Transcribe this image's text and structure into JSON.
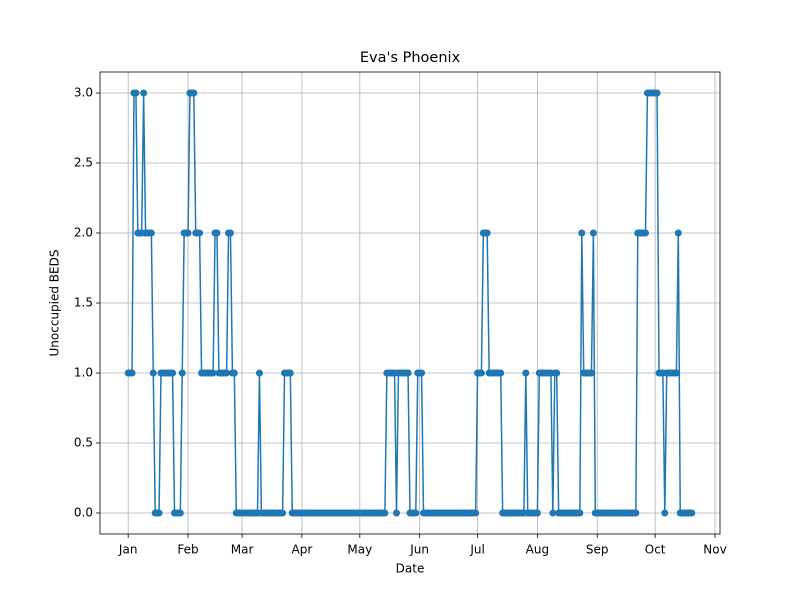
{
  "chart_data": {
    "type": "line",
    "title": "Eva's Phoenix",
    "x_label": "Date",
    "y_label": "Unoccupied BEDS",
    "grid": true,
    "xlim": [
      -14.6,
      306.6
    ],
    "xticks": [
      {
        "value": 0,
        "label": "Jan"
      },
      {
        "value": 31,
        "label": "Feb"
      },
      {
        "value": 59,
        "label": "Mar"
      },
      {
        "value": 90,
        "label": "Apr"
      },
      {
        "value": 120,
        "label": "May"
      },
      {
        "value": 151,
        "label": "Jun"
      },
      {
        "value": 181,
        "label": "Jul"
      },
      {
        "value": 212,
        "label": "Aug"
      },
      {
        "value": 243,
        "label": "Sep"
      },
      {
        "value": 273,
        "label": "Oct"
      },
      {
        "value": 304,
        "label": "Nov"
      }
    ],
    "ylim": [
      -0.15,
      3.15
    ],
    "yticks": [
      {
        "value": 0,
        "label": "0.0"
      },
      {
        "value": 0.5,
        "label": "0.5"
      },
      {
        "value": 1,
        "label": "1.0"
      },
      {
        "value": 1.5,
        "label": "1.5"
      },
      {
        "value": 2,
        "label": "2.0"
      },
      {
        "value": 2.5,
        "label": "2.5"
      },
      {
        "value": 3,
        "label": "3.0"
      }
    ],
    "x": [
      0,
      1,
      2,
      3,
      4,
      5,
      6,
      7,
      8,
      9,
      10,
      11,
      12,
      13,
      14,
      15,
      16,
      17,
      18,
      19,
      20,
      21,
      22,
      23,
      24,
      25,
      26,
      27,
      28,
      29,
      30,
      31,
      32,
      33,
      34,
      35,
      36,
      37,
      38,
      39,
      40,
      41,
      42,
      43,
      44,
      45,
      46,
      47,
      48,
      49,
      50,
      51,
      52,
      53,
      54,
      55,
      56,
      57,
      58,
      59,
      60,
      61,
      62,
      63,
      64,
      65,
      66,
      67,
      68,
      69,
      70,
      71,
      72,
      73,
      74,
      75,
      76,
      77,
      78,
      79,
      80,
      81,
      82,
      83,
      84,
      85,
      86,
      87,
      88,
      89,
      90,
      91,
      92,
      93,
      94,
      95,
      96,
      97,
      98,
      99,
      100,
      101,
      102,
      103,
      104,
      105,
      106,
      107,
      108,
      109,
      110,
      111,
      112,
      113,
      114,
      115,
      116,
      117,
      118,
      119,
      120,
      121,
      122,
      123,
      124,
      125,
      126,
      127,
      128,
      129,
      130,
      131,
      132,
      133,
      134,
      135,
      136,
      137,
      138,
      139,
      140,
      141,
      142,
      143,
      144,
      145,
      146,
      147,
      148,
      149,
      150,
      151,
      152,
      153,
      154,
      155,
      156,
      157,
      158,
      159,
      160,
      161,
      162,
      163,
      164,
      165,
      166,
      167,
      168,
      169,
      170,
      171,
      172,
      173,
      174,
      175,
      176,
      177,
      178,
      179,
      180,
      181,
      182,
      183,
      184,
      185,
      186,
      187,
      188,
      189,
      190,
      191,
      192,
      193,
      194,
      195,
      196,
      197,
      198,
      199,
      200,
      201,
      202,
      203,
      204,
      205,
      206,
      207,
      208,
      209,
      210,
      211,
      212,
      213,
      214,
      215,
      216,
      217,
      218,
      219,
      220,
      221,
      222,
      223,
      224,
      225,
      226,
      227,
      228,
      229,
      230,
      231,
      232,
      233,
      234,
      235,
      236,
      237,
      238,
      239,
      240,
      241,
      242,
      243,
      244,
      245,
      246,
      247,
      248,
      249,
      250,
      251,
      252,
      253,
      254,
      255,
      256,
      257,
      258,
      259,
      260,
      261,
      262,
      263,
      264,
      265,
      266,
      267,
      268,
      269,
      270,
      271,
      272,
      273,
      274,
      275,
      276,
      277,
      278,
      279,
      280,
      281,
      282,
      283,
      284,
      285,
      286,
      287,
      288,
      289,
      290,
      291,
      292
    ],
    "series": [
      {
        "name": "Unoccupied BEDS",
        "color": "#1f77b4",
        "values": [
          1,
          1,
          1,
          3,
          3,
          2,
          2,
          2,
          3,
          2,
          2,
          2,
          2,
          1,
          0,
          0,
          0,
          1,
          1,
          1,
          1,
          1,
          1,
          1,
          0,
          0,
          0,
          0,
          1,
          2,
          2,
          2,
          3,
          3,
          3,
          2,
          2,
          2,
          1,
          1,
          1,
          1,
          1,
          1,
          1,
          2,
          2,
          1,
          1,
          1,
          1,
          1,
          2,
          2,
          1,
          1,
          0,
          0,
          0,
          0,
          0,
          0,
          0,
          0,
          0,
          0,
          0,
          0,
          1,
          0,
          0,
          0,
          0,
          0,
          0,
          0,
          0,
          0,
          0,
          0,
          0,
          1,
          1,
          1,
          1,
          0,
          0,
          0,
          0,
          0,
          0,
          0,
          0,
          0,
          0,
          0,
          0,
          0,
          0,
          0,
          0,
          0,
          0,
          0,
          0,
          0,
          0,
          0,
          0,
          0,
          0,
          0,
          0,
          0,
          0,
          0,
          0,
          0,
          0,
          0,
          0,
          0,
          0,
          0,
          0,
          0,
          0,
          0,
          0,
          0,
          0,
          0,
          0,
          0,
          1,
          1,
          1,
          1,
          1,
          0,
          1,
          1,
          1,
          1,
          1,
          1,
          0,
          0,
          0,
          0,
          1,
          1,
          1,
          0,
          0,
          0,
          0,
          0,
          0,
          0,
          0,
          0,
          0,
          0,
          0,
          0,
          0,
          0,
          0,
          0,
          0,
          0,
          0,
          0,
          0,
          0,
          0,
          0,
          0,
          0,
          0,
          1,
          1,
          1,
          2,
          2,
          2,
          1,
          1,
          1,
          1,
          1,
          1,
          1,
          0,
          0,
          0,
          0,
          0,
          0,
          0,
          0,
          0,
          0,
          0,
          0,
          1,
          0,
          0,
          0,
          0,
          0,
          0,
          1,
          1,
          1,
          1,
          1,
          1,
          1,
          0,
          1,
          1,
          0,
          0,
          0,
          0,
          0,
          0,
          0,
          0,
          0,
          0,
          0,
          0,
          2,
          1,
          1,
          1,
          1,
          1,
          2,
          0,
          0,
          0,
          0,
          0,
          0,
          0,
          0,
          0,
          0,
          0,
          0,
          0,
          0,
          0,
          0,
          0,
          0,
          0,
          0,
          0,
          0,
          2,
          2,
          2,
          2,
          2,
          3,
          3,
          3,
          3,
          3,
          3,
          1,
          1,
          1,
          0,
          1,
          1,
          1,
          1,
          1,
          1,
          2,
          0,
          0,
          0,
          0,
          0,
          0,
          0
        ]
      }
    ]
  }
}
